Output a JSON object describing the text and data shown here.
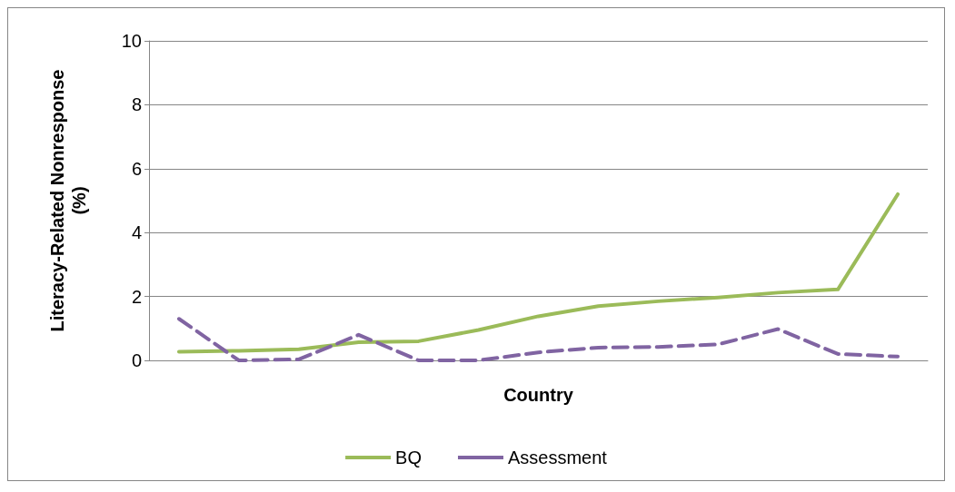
{
  "chart_data": {
    "type": "line",
    "xlabel": "Country",
    "ylabel": "Literacy-Related Nonresponse\n(%)",
    "categories": [
      null,
      null,
      null,
      null,
      null,
      null,
      null,
      null,
      null,
      null,
      null,
      null,
      null
    ],
    "series": [
      {
        "name": "BQ",
        "color": "#9bbb59",
        "line_style": "solid",
        "values": [
          0.27,
          0.3,
          0.35,
          0.57,
          0.6,
          0.95,
          1.38,
          1.7,
          1.85,
          1.97,
          2.12,
          2.22,
          5.2
        ]
      },
      {
        "name": "Assessment",
        "color": "#8064a2",
        "line_style": "dashed",
        "values": [
          1.3,
          0,
          0.03,
          0.8,
          0,
          0,
          0.25,
          0.4,
          0.42,
          0.5,
          0.98,
          0.2,
          0.12
        ]
      }
    ],
    "ylim": [
      0,
      10
    ],
    "yticks": [
      0,
      2,
      4,
      6,
      8,
      10
    ],
    "grid": "y",
    "legend": "bottom",
    "marker": "none"
  }
}
